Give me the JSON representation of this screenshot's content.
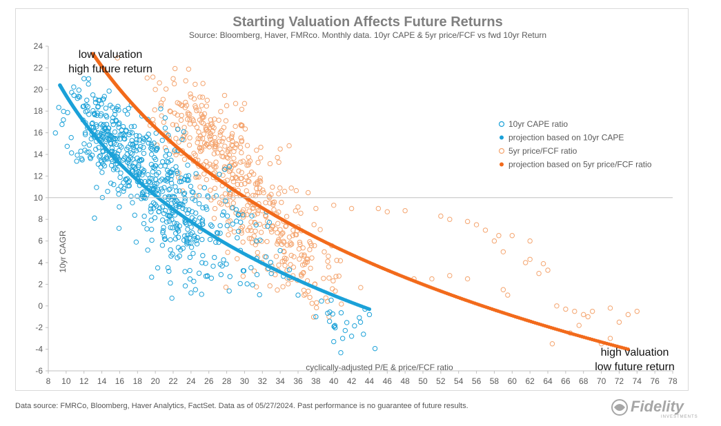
{
  "chart_data": {
    "type": "scatter",
    "title": "Starting Valuation Affects Future Returns",
    "subtitle": "Source: Bloomberg, Haver, FMRco.  Monthly data.  10yr CAPE & 5yr price/FCF vs fwd 10yr Return",
    "xlabel": "cyclically-adjusted P/E & price/FCF ratio",
    "ylabel": "10yr CAGR",
    "xlim": [
      8,
      78
    ],
    "ylim": [
      -6,
      24
    ],
    "x_ticks": [
      8,
      10,
      12,
      14,
      16,
      18,
      20,
      22,
      24,
      26,
      28,
      30,
      32,
      34,
      36,
      38,
      40,
      42,
      44,
      46,
      48,
      50,
      52,
      54,
      56,
      58,
      60,
      62,
      64,
      66,
      68,
      70,
      72,
      74,
      76,
      78
    ],
    "y_ticks": [
      -6,
      -4,
      -2,
      0,
      2,
      4,
      6,
      8,
      10,
      12,
      14,
      16,
      18,
      20,
      22,
      24
    ],
    "grid": false,
    "legend_position": "right",
    "annotations": [
      {
        "lines": [
          "low valuation",
          "high future return"
        ],
        "position": "top-left"
      },
      {
        "lines": [
          "high valuation",
          "low future return"
        ],
        "position": "bottom-right"
      }
    ],
    "series": [
      {
        "name": "10yr CAPE ratio",
        "marker": "open-circle",
        "color": "#1ba1d8",
        "clusters": [
          {
            "x": 14.5,
            "y": 15.5,
            "sx": 2.3,
            "sy": 2.0,
            "n": 220
          },
          {
            "x": 19.0,
            "y": 12.0,
            "sx": 2.5,
            "sy": 3.0,
            "n": 200
          },
          {
            "x": 23.0,
            "y": 8.0,
            "sx": 2.5,
            "sy": 2.5,
            "n": 160
          },
          {
            "x": 29.0,
            "y": 6.5,
            "sx": 3.0,
            "sy": 2.5,
            "n": 60
          },
          {
            "x": 40.5,
            "y": -1.5,
            "sx": 1.5,
            "sy": 1.2,
            "n": 18
          }
        ],
        "outliers": [
          [
            12,
            21
          ],
          [
            12.5,
            20.5
          ],
          [
            13,
            19.5
          ],
          [
            24,
            1.2
          ],
          [
            24.5,
            1.5
          ],
          [
            33,
            3
          ],
          [
            35,
            2.6
          ],
          [
            36,
            1
          ],
          [
            38,
            -1
          ],
          [
            40,
            -3.3
          ],
          [
            41,
            -3
          ],
          [
            43,
            -1.5
          ],
          [
            44,
            -0.8
          ],
          [
            43.5,
            -0.3
          ],
          [
            42,
            -2.8
          ]
        ]
      },
      {
        "name": "projection based on 10yr CAPE",
        "marker": "filled-dot",
        "color": "#1ba1d8",
        "curve": {
          "x_start": 9.3,
          "x_end": 44,
          "x_ref": 9.3,
          "y_ref": 20.4,
          "x_end_y": -0.3
        }
      },
      {
        "name": "5yr price/FCF ratio",
        "marker": "open-circle",
        "color": "#f4a46e",
        "clusters": [
          {
            "x": 25.5,
            "y": 15.5,
            "sx": 2.8,
            "sy": 2.2,
            "n": 220
          },
          {
            "x": 31.0,
            "y": 9.0,
            "sx": 3.0,
            "sy": 2.6,
            "n": 200
          },
          {
            "x": 37.0,
            "y": 3.5,
            "sx": 2.5,
            "sy": 1.8,
            "n": 90
          }
        ],
        "outliers": [
          [
            20,
            20
          ],
          [
            22,
            21
          ],
          [
            24,
            19.3
          ],
          [
            25,
            19.3
          ],
          [
            28,
            18.5
          ],
          [
            29,
            18.7
          ],
          [
            30,
            18.7
          ],
          [
            34,
            14.5
          ],
          [
            35,
            14.8
          ],
          [
            38,
            9
          ],
          [
            40,
            9.3
          ],
          [
            42,
            9
          ],
          [
            45,
            9
          ],
          [
            46,
            8.7
          ],
          [
            48,
            8.8
          ],
          [
            52,
            8.3
          ],
          [
            53,
            8
          ],
          [
            55,
            7.8
          ],
          [
            56,
            7.5
          ],
          [
            57,
            7
          ],
          [
            58,
            6
          ],
          [
            58.5,
            6.5
          ],
          [
            59,
            5
          ],
          [
            60,
            6.5
          ],
          [
            62,
            6
          ],
          [
            61.5,
            4
          ],
          [
            62,
            4.3
          ],
          [
            63.5,
            3.9
          ],
          [
            64,
            3.3
          ],
          [
            49,
            2.5
          ],
          [
            51,
            2.5
          ],
          [
            53,
            2.8
          ],
          [
            55,
            2.5
          ],
          [
            59,
            1.5
          ],
          [
            59.5,
            1
          ],
          [
            63,
            3
          ],
          [
            64.5,
            -3.5
          ],
          [
            65,
            0
          ],
          [
            66,
            -0.3
          ],
          [
            67,
            -0.5
          ],
          [
            68,
            -0.8
          ],
          [
            68.5,
            -1
          ],
          [
            69,
            -0.5
          ],
          [
            71,
            -0.2
          ],
          [
            72,
            -1.5
          ],
          [
            73,
            -0.8
          ],
          [
            74,
            -0.5
          ],
          [
            66.5,
            -2.5
          ],
          [
            67.5,
            -1.8
          ],
          [
            70,
            -3.5
          ],
          [
            71,
            -3
          ]
        ]
      },
      {
        "name": "projection based on 5yr price/FCF ratio",
        "marker": "filled-dot",
        "color": "#f26a1b",
        "curve": {
          "x_start": 13,
          "x_end": 73,
          "x_ref": 13,
          "y_ref": 23.3,
          "x_end_y": -4.0
        }
      }
    ]
  },
  "footnote": "Data source: FMRCo, Bloomberg, Haver Analytics, FactSet. Data as of 05/27/2024. Past performance is no guarantee of future results.",
  "logo": {
    "name": "Fidelity",
    "tagline": "INVESTMENTS",
    "color": "#9a9a9a"
  }
}
